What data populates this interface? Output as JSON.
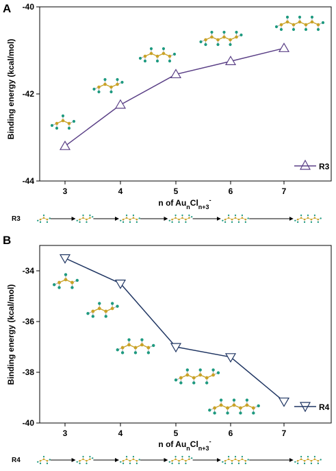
{
  "colors": {
    "gold": "#c9a227",
    "chlorine": "#1e9a80",
    "R3_line": "#5a3f86",
    "R4_line": "#1f3562"
  },
  "chart_data": [
    {
      "type": "line",
      "panel": "A",
      "xlabel_main": "n of Au",
      "xlabel_sub1": "n",
      "xlabel_mid": "Cl",
      "xlabel_sub2": "n+3",
      "xlabel_sup": "-",
      "ylabel": "Binding energy (kcal/mol)",
      "x": [
        3,
        4,
        5,
        6,
        7
      ],
      "xticks": [
        "3",
        "4",
        "5",
        "6",
        "7"
      ],
      "ylim": [
        -44,
        -40
      ],
      "yticks": [
        "-40",
        "-42",
        "-44"
      ],
      "ytick_values": [
        -40,
        -42,
        -44
      ],
      "series": [
        {
          "name": "R3",
          "values": [
            -43.2,
            -42.25,
            -41.55,
            -41.25,
            -40.95
          ],
          "marker": "triangle-up",
          "color": "#5a3f86"
        }
      ],
      "legend": "bottom-right",
      "row_label": "R3"
    },
    {
      "type": "line",
      "panel": "B",
      "xlabel_main": "n of Au",
      "xlabel_sub1": "n",
      "xlabel_mid": "Cl",
      "xlabel_sub2": "n+3",
      "xlabel_sup": "-",
      "ylabel": "Binding energy (kcal/mol)",
      "x": [
        3,
        4,
        5,
        6,
        7
      ],
      "xticks": [
        "3",
        "4",
        "5",
        "6",
        "7"
      ],
      "ylim": [
        -40,
        -33
      ],
      "yticks": [
        "-34",
        "-36",
        "-38",
        "-40"
      ],
      "ytick_values": [
        -34,
        -36,
        -38,
        -40
      ],
      "series": [
        {
          "name": "R4",
          "values": [
            -33.5,
            -34.5,
            -37.0,
            -37.4,
            -39.15
          ],
          "marker": "triangle-down",
          "color": "#1f3562"
        }
      ],
      "legend": "bottom-right",
      "row_label": "R4"
    }
  ]
}
